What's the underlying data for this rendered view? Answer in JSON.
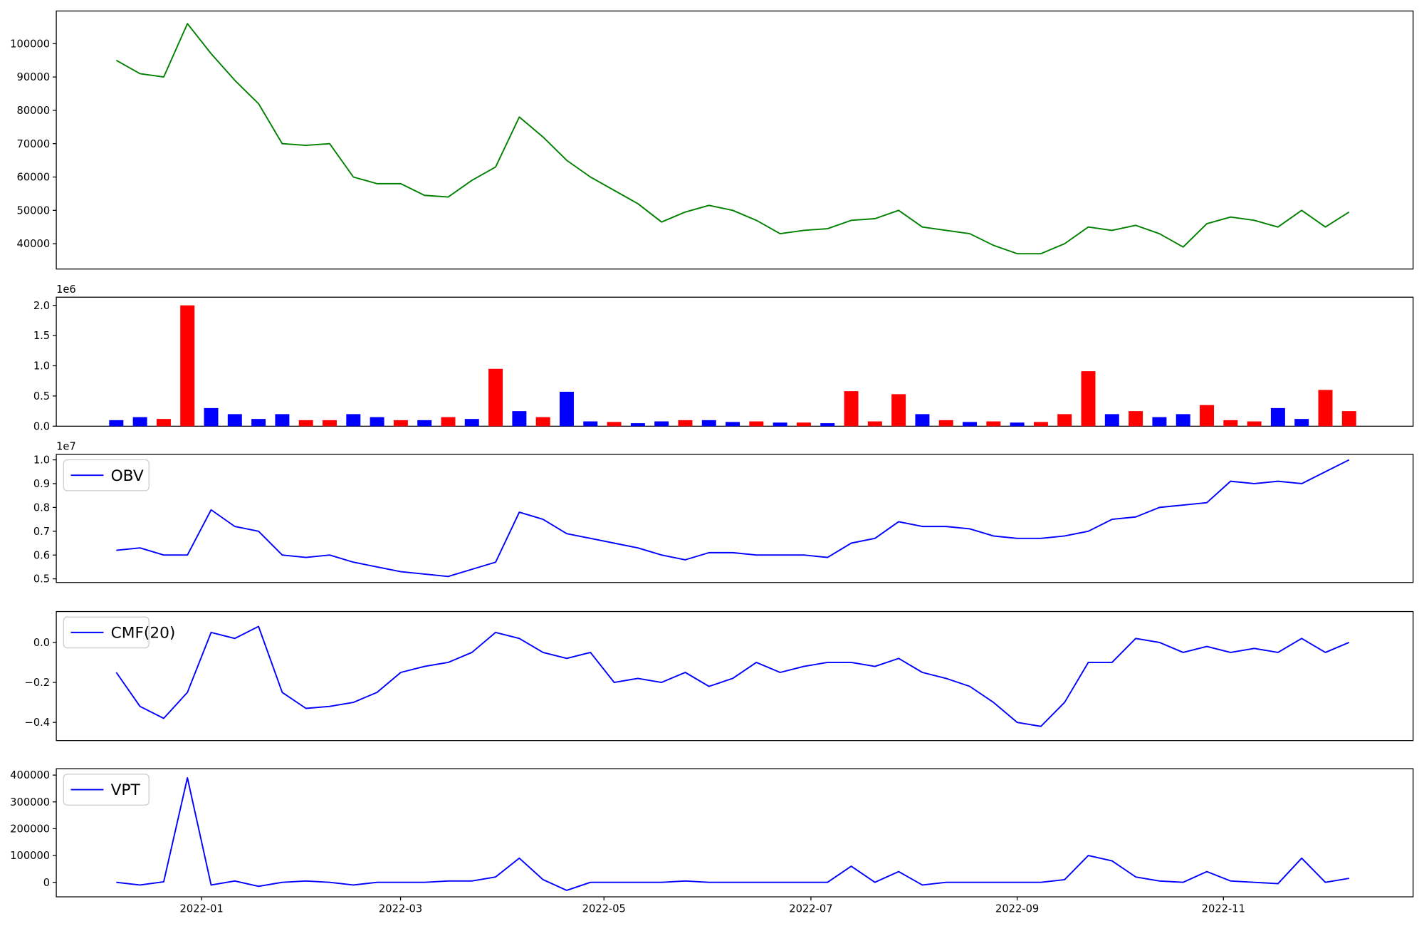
{
  "chart_data": [
    {
      "type": "line",
      "series": [
        {
          "color": "#008000",
          "values": [
            95000,
            91000,
            90000,
            106000,
            97000,
            89000,
            82000,
            70000,
            69500,
            70000,
            60000,
            58000,
            58000,
            54500,
            54000,
            59000,
            63000,
            78000,
            72000,
            65000,
            60000,
            56000,
            52000,
            46500,
            49500,
            51500,
            50000,
            47000,
            43000,
            44000,
            44500,
            47000,
            47500,
            50000,
            45000,
            44000,
            43000,
            39500,
            37000,
            37000,
            40000,
            45000,
            44000,
            45500,
            43000,
            39000,
            46000,
            48000,
            47000,
            45000,
            50000,
            45000,
            49500
          ]
        }
      ],
      "xlim": [
        -2.53,
        54.7
      ],
      "ylim": [
        32400,
        109800
      ],
      "yticks": [
        40000,
        50000,
        60000,
        70000,
        80000,
        90000,
        100000
      ]
    },
    {
      "type": "bar",
      "offset_label": "1e6",
      "values": [
        0.1,
        0.15,
        0.12,
        2.0,
        0.3,
        0.2,
        0.12,
        0.2,
        0.1,
        0.1,
        0.2,
        0.15,
        0.1,
        0.1,
        0.15,
        0.12,
        0.95,
        0.25,
        0.15,
        0.57,
        0.08,
        0.07,
        0.05,
        0.08,
        0.1,
        0.1,
        0.07,
        0.08,
        0.06,
        0.06,
        0.05,
        0.58,
        0.08,
        0.53,
        0.2,
        0.1,
        0.07,
        0.08,
        0.06,
        0.07,
        0.2,
        0.91,
        0.2,
        0.25,
        0.15,
        0.2,
        0.35,
        0.1,
        0.08,
        0.3,
        0.12,
        0.6,
        0.25
      ],
      "colors": [
        "#0000ff",
        "#0000ff",
        "#ff0000",
        "#ff0000",
        "#0000ff",
        "#0000ff",
        "#0000ff",
        "#0000ff",
        "#ff0000",
        "#ff0000",
        "#0000ff",
        "#0000ff",
        "#ff0000",
        "#0000ff",
        "#ff0000",
        "#0000ff",
        "#ff0000",
        "#0000ff",
        "#ff0000",
        "#0000ff",
        "#0000ff",
        "#ff0000",
        "#0000ff",
        "#0000ff",
        "#ff0000",
        "#0000ff",
        "#0000ff",
        "#ff0000",
        "#0000ff",
        "#ff0000",
        "#0000ff",
        "#ff0000",
        "#ff0000",
        "#ff0000",
        "#0000ff",
        "#ff0000",
        "#0000ff",
        "#ff0000",
        "#0000ff",
        "#ff0000",
        "#ff0000",
        "#ff0000",
        "#0000ff",
        "#ff0000",
        "#0000ff",
        "#0000ff",
        "#ff0000",
        "#ff0000",
        "#ff0000",
        "#0000ff",
        "#0000ff",
        "#ff0000",
        "#ff0000"
      ],
      "xlim": [
        -2.53,
        54.7
      ],
      "ylim": [
        0,
        2.135
      ],
      "yticks": [
        {
          "value": 0,
          "label": "0.0"
        },
        {
          "value": 0.5,
          "label": "0.5"
        },
        {
          "value": 1,
          "label": "1.0"
        },
        {
          "value": 1.5,
          "label": "1.5"
        },
        {
          "value": 2,
          "label": "2.0"
        }
      ]
    },
    {
      "type": "line",
      "offset_label": "1e7",
      "legend": "upper left",
      "series": [
        {
          "name": "OBV",
          "color": "#0000ff",
          "values": [
            0.62,
            0.63,
            0.6,
            0.6,
            0.79,
            0.72,
            0.7,
            0.6,
            0.59,
            0.6,
            0.57,
            0.55,
            0.53,
            0.52,
            0.51,
            0.54,
            0.57,
            0.78,
            0.75,
            0.69,
            0.67,
            0.65,
            0.63,
            0.6,
            0.58,
            0.61,
            0.61,
            0.6,
            0.6,
            0.6,
            0.59,
            0.65,
            0.67,
            0.74,
            0.72,
            0.72,
            0.71,
            0.68,
            0.67,
            0.67,
            0.68,
            0.7,
            0.75,
            0.76,
            0.8,
            0.81,
            0.82,
            0.91,
            0.9,
            0.91,
            0.9,
            0.95,
            1.0
          ]
        }
      ],
      "xlim": [
        -2.53,
        54.7
      ],
      "ylim": [
        0.4847,
        1.023
      ],
      "yticks": [
        0.5,
        0.6,
        0.7,
        0.8,
        0.9,
        {
          "value": 1,
          "label": "1.0"
        }
      ]
    },
    {
      "type": "line",
      "legend": "upper left",
      "series": [
        {
          "name": "CMF(20)",
          "color": "#0000ff",
          "values": [
            -0.15,
            -0.32,
            -0.38,
            -0.25,
            0.05,
            0.02,
            0.08,
            -0.25,
            -0.33,
            -0.32,
            -0.3,
            -0.25,
            -0.15,
            -0.12,
            -0.1,
            -0.05,
            0.05,
            0.02,
            -0.05,
            -0.08,
            -0.05,
            -0.2,
            -0.18,
            -0.2,
            -0.15,
            -0.22,
            -0.18,
            -0.1,
            -0.15,
            -0.12,
            -0.1,
            -0.1,
            -0.12,
            -0.08,
            -0.15,
            -0.18,
            -0.22,
            -0.3,
            -0.4,
            -0.42,
            -0.3,
            -0.1,
            -0.1,
            0.02,
            0.0,
            -0.05,
            -0.02,
            -0.05,
            -0.03,
            -0.05,
            0.02,
            -0.05,
            0.0
          ]
        }
      ],
      "xlim": [
        -2.53,
        54.7
      ],
      "ylim": [
        -0.491,
        0.1545
      ],
      "yticks": [
        {
          "value": -0.4,
          "label": "−0.4"
        },
        {
          "value": -0.2,
          "label": "−0.2"
        },
        {
          "value": 0,
          "label": "0.0"
        }
      ]
    },
    {
      "type": "line",
      "legend": "upper left",
      "series": [
        {
          "name": "VPT",
          "color": "#0000ff",
          "values": [
            0,
            -10000,
            2000,
            390000,
            -10000,
            5000,
            -15000,
            0,
            5000,
            0,
            -10000,
            0,
            0,
            0,
            5000,
            5000,
            20000,
            90000,
            10000,
            -30000,
            0,
            0,
            0,
            0,
            5000,
            0,
            0,
            0,
            0,
            0,
            0,
            60000,
            0,
            40000,
            -10000,
            0,
            0,
            0,
            0,
            0,
            10000,
            100000,
            80000,
            20000,
            5000,
            0,
            40000,
            5000,
            0,
            -5000,
            90000,
            0,
            15000
          ]
        }
      ],
      "xlim": [
        -2.53,
        54.7
      ],
      "ylim": [
        -54200,
        423700
      ],
      "yticks": [
        0,
        100000,
        200000,
        300000,
        400000
      ],
      "xticks": [
        {
          "value": 3.6,
          "label": "2022-01"
        },
        {
          "value": 11.99,
          "label": "2022-03"
        },
        {
          "value": 20.57,
          "label": "2022-05"
        },
        {
          "value": 29.3,
          "label": "2022-07"
        },
        {
          "value": 38.0,
          "label": "2022-09"
        },
        {
          "value": 46.7,
          "label": "2022-11"
        }
      ]
    }
  ]
}
